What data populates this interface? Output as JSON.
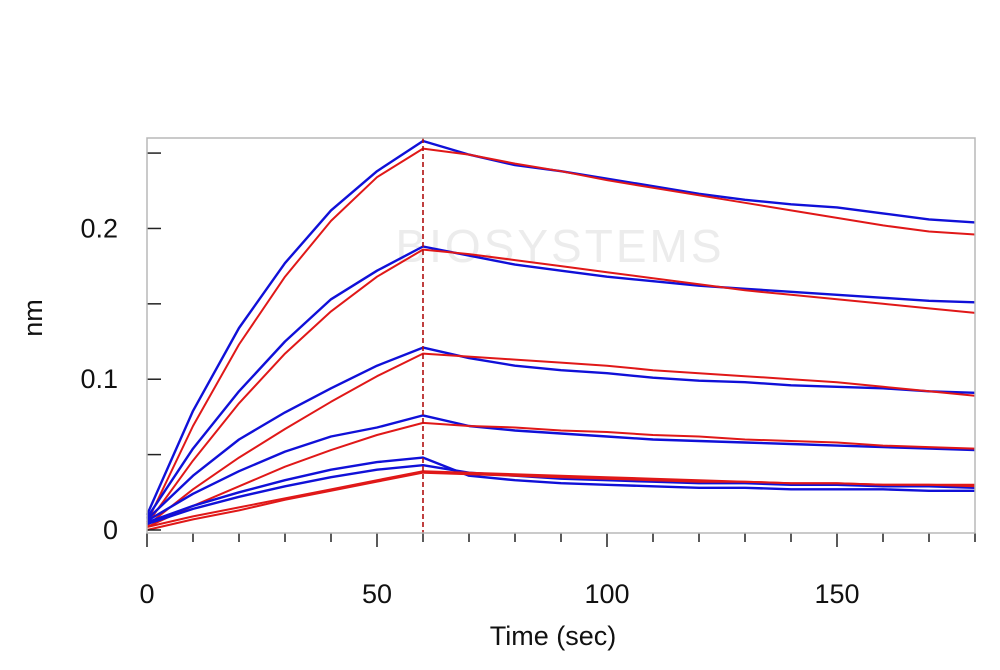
{
  "chart_data": {
    "type": "line",
    "xlabel": "Time (sec)",
    "ylabel": "nm",
    "xlim": [
      0,
      180
    ],
    "ylim": [
      -0.002,
      0.26
    ],
    "x_ticks": [
      0,
      50,
      100,
      150
    ],
    "x_minor_step": 10,
    "y_ticks": [
      0,
      0.1,
      0.2
    ],
    "y_tick_labels": [
      "0",
      "0.1",
      "0.2"
    ],
    "y_minor_step": 0.05,
    "grid": false,
    "association_end_time": 60,
    "watermark": "BIOSYSTEMS",
    "colors": {
      "measured": "#1010d8",
      "fit": "#e01818",
      "marker": "#b01010",
      "frame": "#b8b8b8"
    },
    "series": [
      {
        "kind": "measured",
        "color": "#1010d8",
        "x": [
          0,
          10,
          20,
          30,
          40,
          50,
          60,
          70,
          80,
          90,
          100,
          110,
          120,
          130,
          140,
          150,
          160,
          170,
          180
        ],
        "y": [
          0.01,
          0.079,
          0.134,
          0.177,
          0.212,
          0.238,
          0.258,
          0.249,
          0.242,
          0.238,
          0.233,
          0.228,
          0.223,
          0.219,
          0.216,
          0.214,
          0.21,
          0.206,
          0.204
        ]
      },
      {
        "kind": "fit",
        "color": "#e01818",
        "x": [
          0,
          10,
          20,
          30,
          40,
          50,
          60,
          70,
          80,
          90,
          100,
          110,
          120,
          130,
          140,
          150,
          160,
          170,
          180
        ],
        "y": [
          0.005,
          0.069,
          0.123,
          0.168,
          0.205,
          0.234,
          0.253,
          0.249,
          0.243,
          0.238,
          0.232,
          0.227,
          0.222,
          0.217,
          0.212,
          0.207,
          0.202,
          0.198,
          0.196
        ]
      },
      {
        "kind": "measured",
        "color": "#1010d8",
        "x": [
          0,
          10,
          20,
          30,
          40,
          50,
          60,
          70,
          80,
          90,
          100,
          110,
          120,
          130,
          140,
          150,
          160,
          170,
          180
        ],
        "y": [
          0.008,
          0.054,
          0.092,
          0.125,
          0.153,
          0.172,
          0.188,
          0.182,
          0.176,
          0.172,
          0.168,
          0.165,
          0.162,
          0.16,
          0.158,
          0.156,
          0.154,
          0.152,
          0.151
        ]
      },
      {
        "kind": "fit",
        "color": "#e01818",
        "x": [
          0,
          10,
          20,
          30,
          40,
          50,
          60,
          70,
          80,
          90,
          100,
          110,
          120,
          130,
          140,
          150,
          160,
          170,
          180
        ],
        "y": [
          0.004,
          0.046,
          0.084,
          0.117,
          0.145,
          0.168,
          0.186,
          0.183,
          0.179,
          0.175,
          0.171,
          0.167,
          0.163,
          0.159,
          0.156,
          0.153,
          0.15,
          0.147,
          0.144
        ]
      },
      {
        "kind": "measured",
        "color": "#1010d8",
        "x": [
          0,
          10,
          20,
          30,
          40,
          50,
          60,
          70,
          80,
          90,
          100,
          110,
          120,
          130,
          140,
          150,
          160,
          170,
          180
        ],
        "y": [
          0.007,
          0.036,
          0.06,
          0.078,
          0.094,
          0.109,
          0.121,
          0.114,
          0.109,
          0.106,
          0.104,
          0.101,
          0.099,
          0.098,
          0.096,
          0.095,
          0.094,
          0.092,
          0.091
        ]
      },
      {
        "kind": "fit",
        "color": "#e01818",
        "x": [
          0,
          10,
          20,
          30,
          40,
          50,
          60,
          70,
          80,
          90,
          100,
          110,
          120,
          130,
          140,
          150,
          160,
          170,
          180
        ],
        "y": [
          0.003,
          0.027,
          0.048,
          0.067,
          0.085,
          0.102,
          0.117,
          0.115,
          0.113,
          0.111,
          0.109,
          0.106,
          0.104,
          0.102,
          0.1,
          0.098,
          0.095,
          0.092,
          0.089
        ]
      },
      {
        "kind": "measured",
        "color": "#1010d8",
        "x": [
          0,
          10,
          20,
          30,
          40,
          50,
          60,
          70,
          80,
          90,
          100,
          110,
          120,
          130,
          140,
          150,
          160,
          170,
          180
        ],
        "y": [
          0.006,
          0.024,
          0.039,
          0.052,
          0.062,
          0.068,
          0.076,
          0.069,
          0.066,
          0.064,
          0.062,
          0.06,
          0.059,
          0.058,
          0.057,
          0.056,
          0.055,
          0.054,
          0.053
        ]
      },
      {
        "kind": "fit",
        "color": "#e01818",
        "x": [
          0,
          10,
          20,
          30,
          40,
          50,
          60,
          70,
          80,
          90,
          100,
          110,
          120,
          130,
          140,
          150,
          160,
          170,
          180
        ],
        "y": [
          0.002,
          0.016,
          0.029,
          0.042,
          0.053,
          0.063,
          0.071,
          0.069,
          0.068,
          0.066,
          0.065,
          0.063,
          0.062,
          0.06,
          0.059,
          0.058,
          0.056,
          0.055,
          0.054
        ]
      },
      {
        "kind": "measured",
        "color": "#1010d8",
        "x": [
          0,
          10,
          20,
          30,
          40,
          50,
          60,
          70,
          80,
          90,
          100,
          110,
          120,
          130,
          140,
          150,
          160,
          170,
          180
        ],
        "y": [
          0.005,
          0.016,
          0.025,
          0.033,
          0.04,
          0.045,
          0.048,
          0.036,
          0.033,
          0.031,
          0.03,
          0.029,
          0.028,
          0.028,
          0.027,
          0.027,
          0.027,
          0.026,
          0.026
        ]
      },
      {
        "kind": "measured",
        "color": "#1010d8",
        "x": [
          0,
          10,
          20,
          30,
          40,
          50,
          60,
          70,
          80,
          90,
          100,
          110,
          120,
          130,
          140,
          150,
          160,
          170,
          180
        ],
        "y": [
          0.004,
          0.014,
          0.022,
          0.029,
          0.035,
          0.04,
          0.043,
          0.038,
          0.036,
          0.034,
          0.033,
          0.032,
          0.031,
          0.031,
          0.03,
          0.03,
          0.029,
          0.029,
          0.028
        ]
      },
      {
        "kind": "fit",
        "color": "#e01818",
        "x": [
          0,
          10,
          20,
          30,
          40,
          50,
          60,
          70,
          80,
          90,
          100,
          110,
          120,
          130,
          140,
          150,
          160,
          170,
          180
        ],
        "y": [
          0.0,
          0.007,
          0.013,
          0.02,
          0.026,
          0.032,
          0.038,
          0.037,
          0.036,
          0.035,
          0.034,
          0.033,
          0.032,
          0.032,
          0.031,
          0.031,
          0.03,
          0.03,
          0.029
        ]
      },
      {
        "kind": "fit",
        "color": "#e01818",
        "x": [
          0,
          10,
          20,
          30,
          40,
          50,
          60,
          70,
          80,
          90,
          100,
          110,
          120,
          130,
          140,
          150,
          160,
          170,
          180
        ],
        "y": [
          0.002,
          0.009,
          0.015,
          0.021,
          0.027,
          0.033,
          0.039,
          0.038,
          0.037,
          0.036,
          0.035,
          0.034,
          0.033,
          0.032,
          0.031,
          0.031,
          0.03,
          0.03,
          0.03
        ]
      }
    ]
  }
}
